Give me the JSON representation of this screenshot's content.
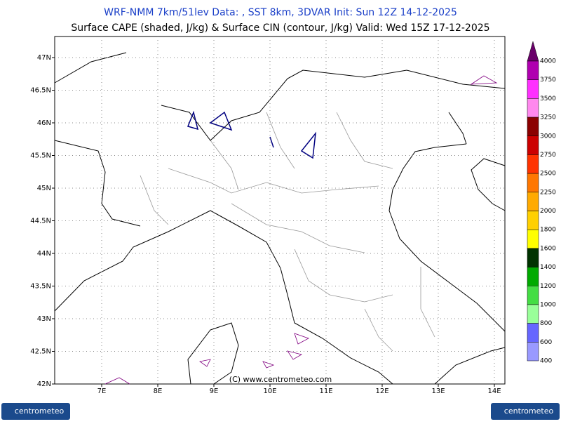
{
  "header": {
    "line1": "WRF-NMM 7km/51lev   Data: , SST 8km, 3DVAR   Init: Sun 12Z 14-12-2025",
    "line2": "Surface CAPE (shaded, J/kg) & Surface CIN (contour, J/kg)  Valid: Wed 15Z 17-12-2025"
  },
  "map": {
    "lat_labels": [
      "47N",
      "46.5N",
      "46N",
      "45.5N",
      "45N",
      "44.5N",
      "44N",
      "43.5N",
      "43N",
      "42.5N",
      "42N"
    ],
    "lon_labels": [
      "7E",
      "8E",
      "9E",
      "10E",
      "11E",
      "12E",
      "13E",
      "14E"
    ],
    "credit": "(C) www.centrometeo.com"
  },
  "colorbar": {
    "labels": [
      4000,
      3750,
      3500,
      3250,
      3000,
      2750,
      2500,
      2250,
      2000,
      1800,
      1600,
      1400,
      1200,
      1000,
      800,
      600,
      400
    ],
    "colors": [
      "#6a006a",
      "#b000b0",
      "#ff30ff",
      "#ff88ee",
      "#8b0000",
      "#cc0000",
      "#ff3300",
      "#ff7700",
      "#ffaa00",
      "#ffd000",
      "#ffff00",
      "#003300",
      "#00aa00",
      "#44dd44",
      "#99ff99",
      "#6666ff",
      "#9999ff",
      "#c8c8ff",
      "#e4e4ff"
    ]
  },
  "footer": {
    "logo_left": "centrometeo",
    "logo_right": "centrometeo"
  }
}
